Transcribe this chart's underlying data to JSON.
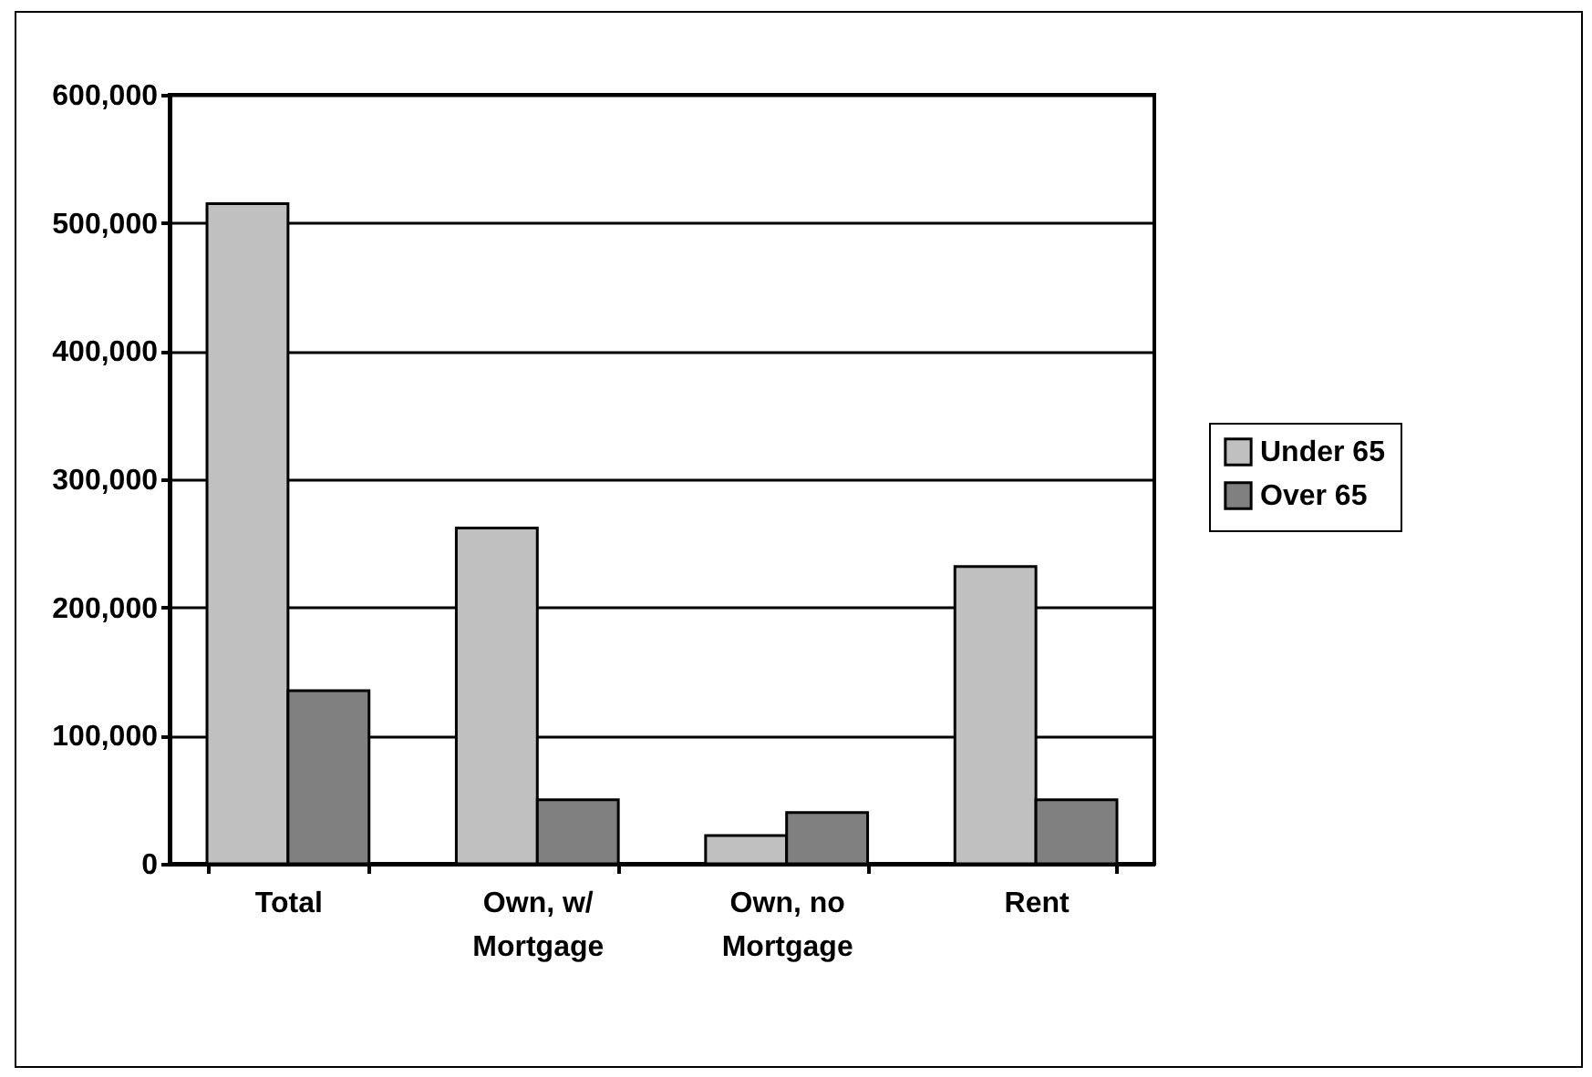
{
  "chart_data": {
    "type": "bar",
    "categories": [
      "Total",
      "Own, w/ Mortgage",
      "Own, no Mortgage",
      "Rent"
    ],
    "series": [
      {
        "name": "Under 65",
        "color": "#c0c0c0",
        "values": [
          515000,
          262000,
          22000,
          232000
        ]
      },
      {
        "name": "Over 65",
        "color": "#808080",
        "values": [
          135000,
          50000,
          40000,
          50000
        ]
      }
    ],
    "ylim": [
      0,
      600000
    ],
    "yticks": [
      0,
      {
        "value": 100000,
        "label": "100,000"
      },
      {
        "value": 200000,
        "label": "200,000"
      },
      {
        "value": 300000,
        "label": "300,000"
      },
      {
        "value": 400000,
        "label": "400,000"
      },
      {
        "value": 500000,
        "label": "500,000"
      },
      {
        "value": 600000,
        "label": "600,000"
      }
    ],
    "grid": "y",
    "legend": "right"
  }
}
